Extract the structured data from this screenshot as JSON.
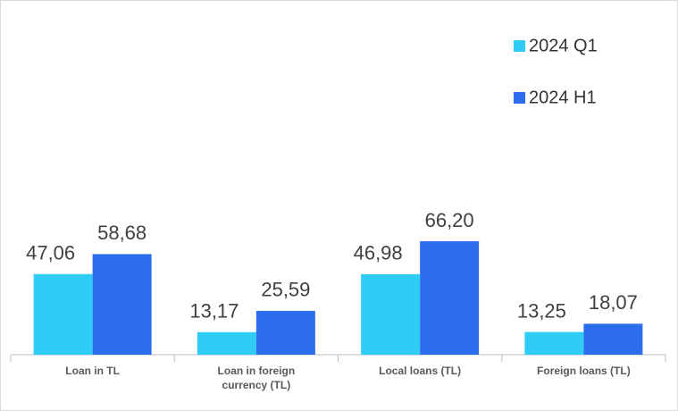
{
  "chart_data": {
    "type": "bar",
    "categories": [
      "Loan in TL",
      "Loan in foreign currency (TL)",
      "Local loans (TL)",
      "Foreign loans (TL)"
    ],
    "series": [
      {
        "name": "2024 Q1",
        "color": "#2fcdf6",
        "values": [
          47.06,
          13.17,
          46.98,
          13.25
        ],
        "value_labels": [
          "47,06",
          "13,17",
          "46,98",
          "13,25"
        ]
      },
      {
        "name": "2024 H1",
        "color": "#2c6ded",
        "values": [
          58.68,
          25.59,
          66.2,
          18.07
        ],
        "value_labels": [
          "58,68",
          "25,59",
          "66,20",
          "18,07"
        ]
      }
    ],
    "legend": "top-right"
  }
}
